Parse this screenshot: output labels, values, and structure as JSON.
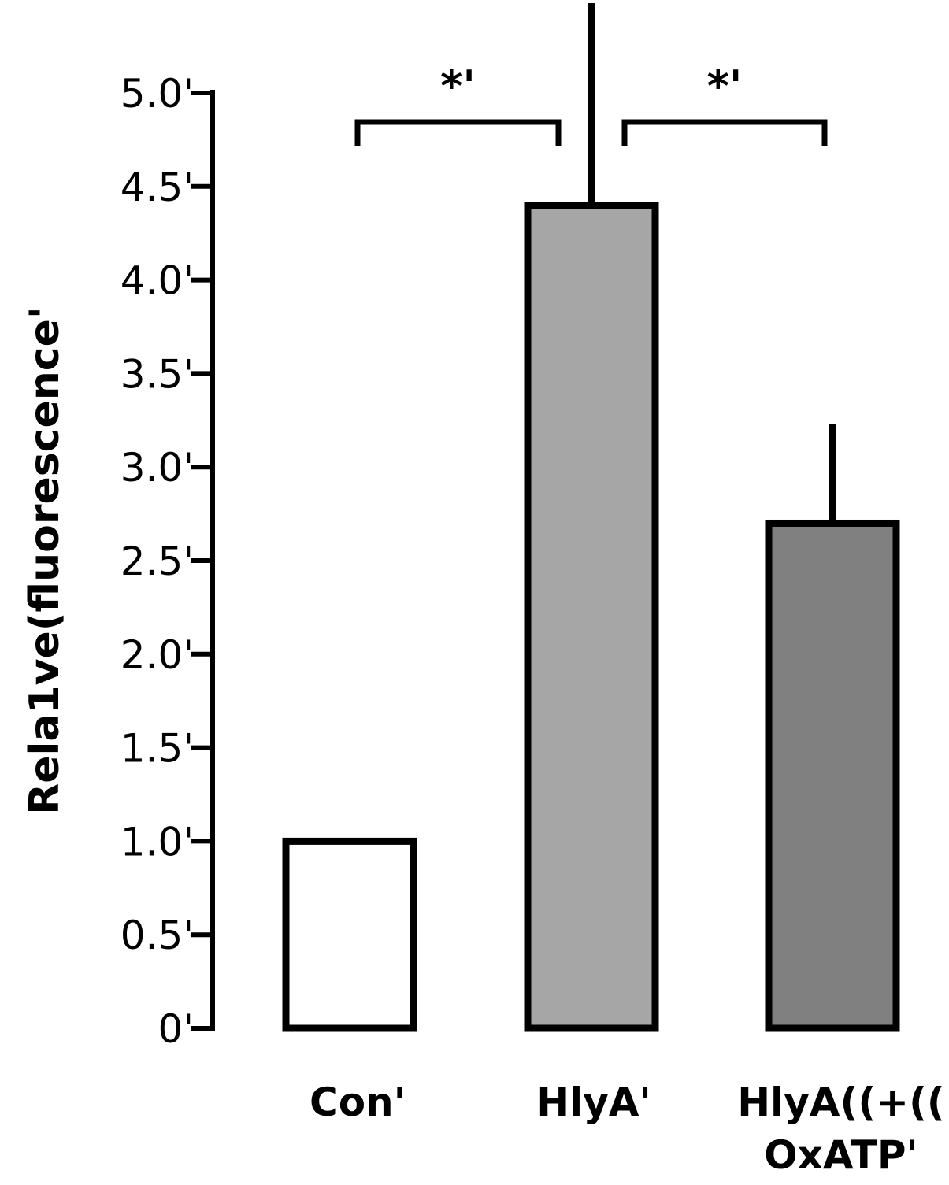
{
  "chart_data": {
    "type": "bar",
    "ylabel": "Rela1ve(fluorescence'",
    "ylim": [
      0,
      5.0
    ],
    "yticks": [
      {
        "value": 0,
        "label": "0'"
      },
      {
        "value": 0.5,
        "label": "0.5'"
      },
      {
        "value": 1.0,
        "label": "1.0'"
      },
      {
        "value": 1.5,
        "label": "1.5'"
      },
      {
        "value": 2.0,
        "label": "2.0'"
      },
      {
        "value": 2.5,
        "label": "2.5'"
      },
      {
        "value": 3.0,
        "label": "3.0'"
      },
      {
        "value": 3.5,
        "label": "3.5'"
      },
      {
        "value": 4.0,
        "label": "4.0'"
      },
      {
        "value": 4.5,
        "label": "4.5'"
      },
      {
        "value": 5.0,
        "label": "5.0'"
      }
    ],
    "categories": [
      {
        "lines": [
          "Con'"
        ]
      },
      {
        "lines": [
          "HlyA'"
        ]
      },
      {
        "lines": [
          "HlyA((+((",
          "OxATP'"
        ]
      }
    ],
    "values": [
      1.0,
      4.4,
      2.7
    ],
    "error_upper": [
      null,
      5.5,
      3.23
    ],
    "bar_colors": [
      "#ffffff",
      "#a6a6a6",
      "#808080"
    ],
    "significance": [
      {
        "from": 0,
        "to": 1,
        "label": "*'"
      },
      {
        "from": 1,
        "to": 2,
        "label": "*'"
      }
    ]
  }
}
